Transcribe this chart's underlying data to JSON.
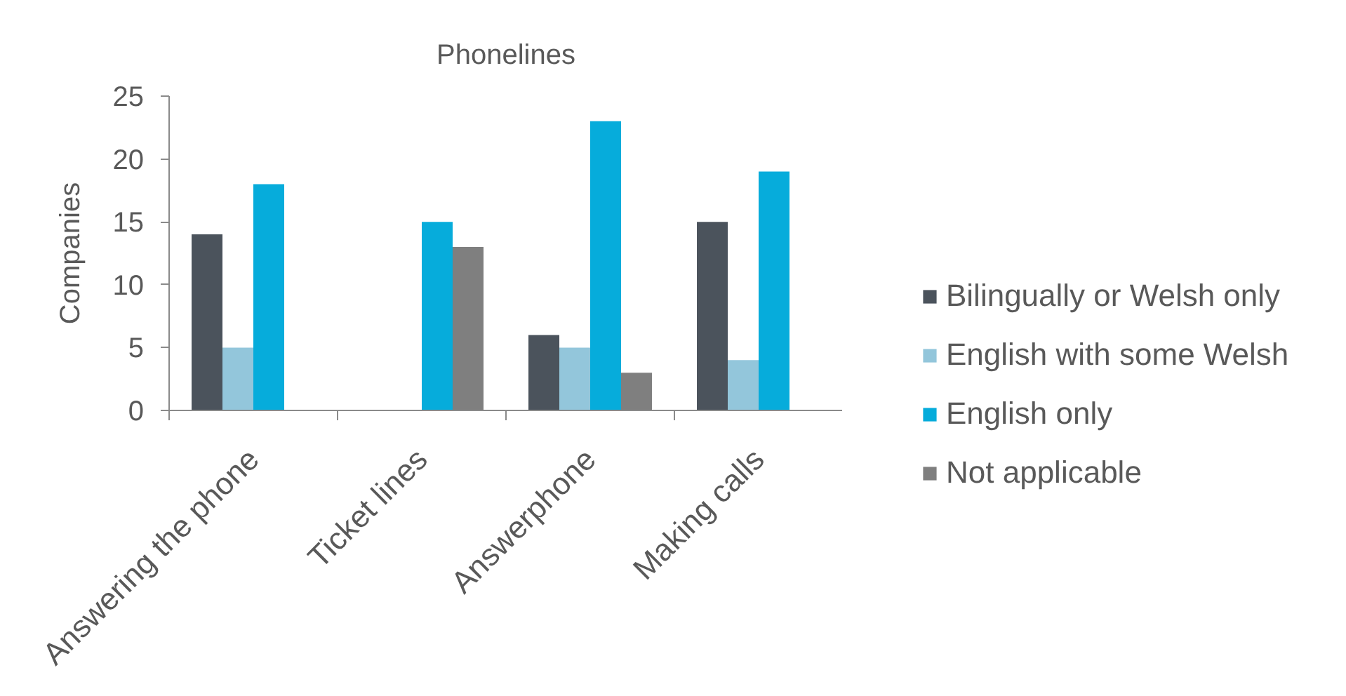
{
  "chart_data": {
    "type": "bar",
    "title": "Phonelines",
    "ylabel": "Companies",
    "categories": [
      "Answering the phone",
      "Ticket lines",
      "Answerphone",
      "Making calls"
    ],
    "series": [
      {
        "name": "Bilingually or Welsh only",
        "color": "#4b535c",
        "values": [
          14,
          null,
          6,
          15
        ]
      },
      {
        "name": "English with some Welsh",
        "color": "#93c6db",
        "values": [
          5,
          null,
          5,
          4
        ]
      },
      {
        "name": "English only",
        "color": "#06acdb",
        "values": [
          18,
          15,
          23,
          19
        ]
      },
      {
        "name": "Not applicable",
        "color": "#7f7f7f",
        "values": [
          null,
          13,
          3,
          null
        ]
      }
    ],
    "ylim": [
      0,
      25
    ],
    "yticks": [
      0,
      5,
      10,
      15,
      20,
      25
    ],
    "grid": false,
    "legend": "right"
  }
}
